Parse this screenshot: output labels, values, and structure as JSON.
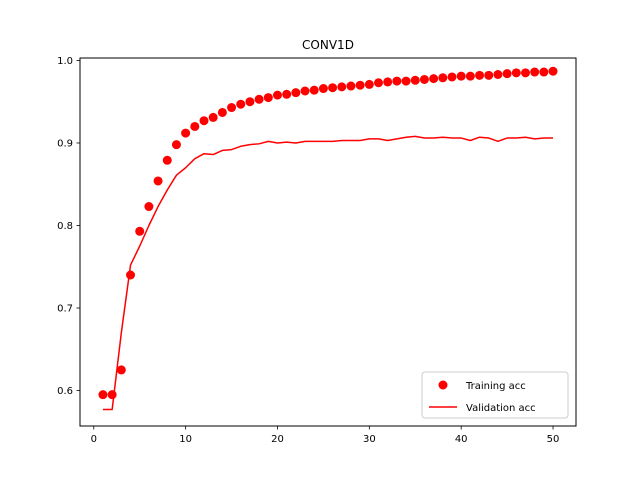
{
  "chart_data": {
    "type": "line",
    "title": "CONV1D",
    "xlabel": "",
    "ylabel": "",
    "xlim": [
      -1.5,
      52.5
    ],
    "ylim": [
      0.557,
      1.003
    ],
    "xticks": [
      0,
      10,
      20,
      30,
      40,
      50
    ],
    "xtick_labels": [
      "0",
      "10",
      "20",
      "30",
      "40",
      "50"
    ],
    "yticks": [
      0.6,
      0.7,
      0.8,
      0.9,
      1.0
    ],
    "ytick_labels": [
      "0.6",
      "0.7",
      "0.8",
      "0.9",
      "1.0"
    ],
    "grid": false,
    "legend_position": "lower-right",
    "series": [
      {
        "name": "Training acc",
        "style": "markers",
        "color": "#ff0000",
        "x": [
          1,
          2,
          3,
          4,
          5,
          6,
          7,
          8,
          9,
          10,
          11,
          12,
          13,
          14,
          15,
          16,
          17,
          18,
          19,
          20,
          21,
          22,
          23,
          24,
          25,
          26,
          27,
          28,
          29,
          30,
          31,
          32,
          33,
          34,
          35,
          36,
          37,
          38,
          39,
          40,
          41,
          42,
          43,
          44,
          45,
          46,
          47,
          48,
          49,
          50
        ],
        "values": [
          0.595,
          0.595,
          0.625,
          0.74,
          0.793,
          0.823,
          0.854,
          0.879,
          0.898,
          0.912,
          0.92,
          0.927,
          0.931,
          0.937,
          0.943,
          0.947,
          0.95,
          0.953,
          0.955,
          0.958,
          0.959,
          0.961,
          0.963,
          0.964,
          0.966,
          0.967,
          0.968,
          0.969,
          0.97,
          0.971,
          0.973,
          0.974,
          0.975,
          0.975,
          0.976,
          0.977,
          0.978,
          0.979,
          0.98,
          0.981,
          0.981,
          0.982,
          0.982,
          0.983,
          0.984,
          0.985,
          0.985,
          0.986,
          0.986,
          0.987
        ]
      },
      {
        "name": "Validation acc",
        "style": "line",
        "color": "#ff0000",
        "x": [
          1,
          2,
          3,
          4,
          5,
          6,
          7,
          8,
          9,
          10,
          11,
          12,
          13,
          14,
          15,
          16,
          17,
          18,
          19,
          20,
          21,
          22,
          23,
          24,
          25,
          26,
          27,
          28,
          29,
          30,
          31,
          32,
          33,
          34,
          35,
          36,
          37,
          38,
          39,
          40,
          41,
          42,
          43,
          44,
          45,
          46,
          47,
          48,
          49,
          50
        ],
        "values": [
          0.577,
          0.577,
          0.67,
          0.752,
          0.775,
          0.8,
          0.823,
          0.843,
          0.861,
          0.87,
          0.881,
          0.887,
          0.886,
          0.891,
          0.892,
          0.896,
          0.898,
          0.899,
          0.902,
          0.9,
          0.901,
          0.9,
          0.902,
          0.902,
          0.902,
          0.902,
          0.903,
          0.903,
          0.903,
          0.905,
          0.905,
          0.903,
          0.905,
          0.907,
          0.908,
          0.906,
          0.906,
          0.907,
          0.906,
          0.906,
          0.903,
          0.907,
          0.906,
          0.902,
          0.906,
          0.906,
          0.907,
          0.905,
          0.906,
          0.906
        ]
      }
    ]
  }
}
